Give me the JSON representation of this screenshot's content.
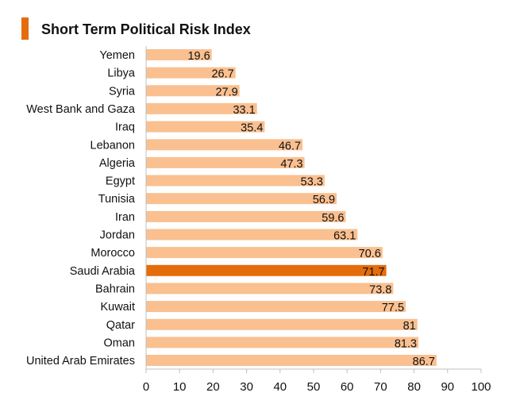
{
  "chart_data": {
    "type": "bar",
    "orientation": "horizontal",
    "title": "Short Term Political Risk Index",
    "categories": [
      "Yemen",
      "Libya",
      "Syria",
      "West Bank and Gaza",
      "Iraq",
      "Lebanon",
      "Algeria",
      "Egypt",
      "Tunisia",
      "Iran",
      "Jordan",
      "Morocco",
      "Saudi Arabia",
      "Bahrain",
      "Kuwait",
      "Qatar",
      "Oman",
      "United Arab Emirates"
    ],
    "values": [
      19.6,
      26.7,
      27.9,
      33.1,
      35.4,
      46.7,
      47.3,
      53.3,
      56.9,
      59.6,
      63.1,
      70.6,
      71.7,
      73.8,
      77.5,
      81,
      81.3,
      86.7
    ],
    "value_labels": [
      "19.6",
      "26.7",
      "27.9",
      "33.1",
      "35.4",
      "46.7",
      "47.3",
      "53.3",
      "56.9",
      "59.6",
      "63.1",
      "70.6",
      "71.7",
      "73.8",
      "77.5",
      "81",
      "81.3",
      "86.7"
    ],
    "highlight_category": "Saudi Arabia",
    "xlim": [
      0,
      100
    ],
    "xticks": [
      0,
      10,
      20,
      30,
      40,
      50,
      60,
      70,
      80,
      90,
      100
    ],
    "xlabel": "",
    "ylabel": "",
    "grid": false,
    "colors": {
      "bar": "#fac090",
      "highlight": "#e46c0a",
      "title_marker": "#e46c0a",
      "axis": "#bfbfbf"
    }
  }
}
